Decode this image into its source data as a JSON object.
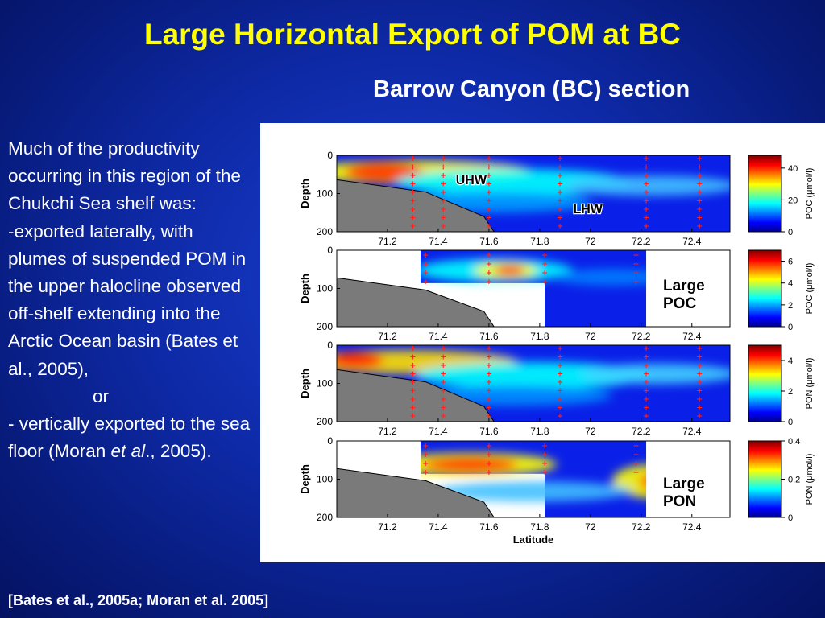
{
  "slide": {
    "title": "Large Horizontal Export of POM at BC",
    "subtitle": "Barrow Canyon (BC) section",
    "citation": "[Bates et al., 2005a; Moran et al. 2005]",
    "body": {
      "line1": "Much of the productivity occurring in this region of the Chukchi Sea shelf was:",
      "line2": "-exported laterally, with plumes of suspended POM in the upper halocline observed off-shelf extending into the Arctic Ocean basin (Bates et al., 2005),",
      "or": "or",
      "line3_pre": "- vertically exported to the sea floor (Moran ",
      "line3_italic": "et al",
      "line3_post": "., 2005)."
    },
    "colors": {
      "title": "#ffff00",
      "text": "#ffffff",
      "background": "#0e2aa8"
    }
  },
  "chart_data": [
    {
      "type": "heatmap",
      "title": "",
      "xlabel": "",
      "ylabel": "Depth",
      "x_ticks": [
        "71.2",
        "71.4",
        "71.6",
        "71.8",
        "72",
        "72.2",
        "72.4"
      ],
      "y_ticks": [
        "0",
        "100",
        "200"
      ],
      "xlim": [
        71.0,
        72.55
      ],
      "ylim": [
        200,
        0
      ],
      "colorbar": {
        "label": "POC (μmol/l)",
        "ticks": [
          "0",
          "20",
          "40"
        ],
        "range": [
          0,
          48
        ]
      },
      "annotations": [
        "UHW",
        "LHW"
      ],
      "masked": false
    },
    {
      "type": "heatmap",
      "title": "",
      "xlabel": "",
      "ylabel": "Depth",
      "x_ticks": [
        "71.2",
        "71.4",
        "71.6",
        "71.8",
        "72",
        "72.2",
        "72.4"
      ],
      "y_ticks": [
        "0",
        "100",
        "200"
      ],
      "xlim": [
        71.0,
        72.55
      ],
      "ylim": [
        200,
        0
      ],
      "colorbar": {
        "label": "POC (μmol/l)",
        "ticks": [
          "0",
          "2",
          "4",
          "6"
        ],
        "range": [
          0,
          7
        ]
      },
      "annotations": [
        "Large POC"
      ],
      "masked": true
    },
    {
      "type": "heatmap",
      "title": "",
      "xlabel": "",
      "ylabel": "Depth",
      "x_ticks": [
        "71.2",
        "71.4",
        "71.6",
        "71.8",
        "72",
        "72.2",
        "72.4"
      ],
      "y_ticks": [
        "0",
        "100",
        "200"
      ],
      "xlim": [
        71.0,
        72.55
      ],
      "ylim": [
        200,
        0
      ],
      "colorbar": {
        "label": "PON (μmol/l)",
        "ticks": [
          "0",
          "2",
          "4"
        ],
        "range": [
          0,
          5
        ]
      },
      "annotations": [],
      "masked": false
    },
    {
      "type": "heatmap",
      "title": "",
      "xlabel": "Latitude",
      "ylabel": "Depth",
      "x_ticks": [
        "71.2",
        "71.4",
        "71.6",
        "71.8",
        "72",
        "72.2",
        "72.4"
      ],
      "y_ticks": [
        "0",
        "100",
        "200"
      ],
      "xlim": [
        71.0,
        72.55
      ],
      "ylim": [
        200,
        0
      ],
      "colorbar": {
        "label": "PON (μmol/l)",
        "ticks": [
          "0",
          "0.2",
          "0.4"
        ],
        "range": [
          0,
          0.4
        ]
      },
      "annotations": [
        "Large PON"
      ],
      "masked": true
    }
  ]
}
